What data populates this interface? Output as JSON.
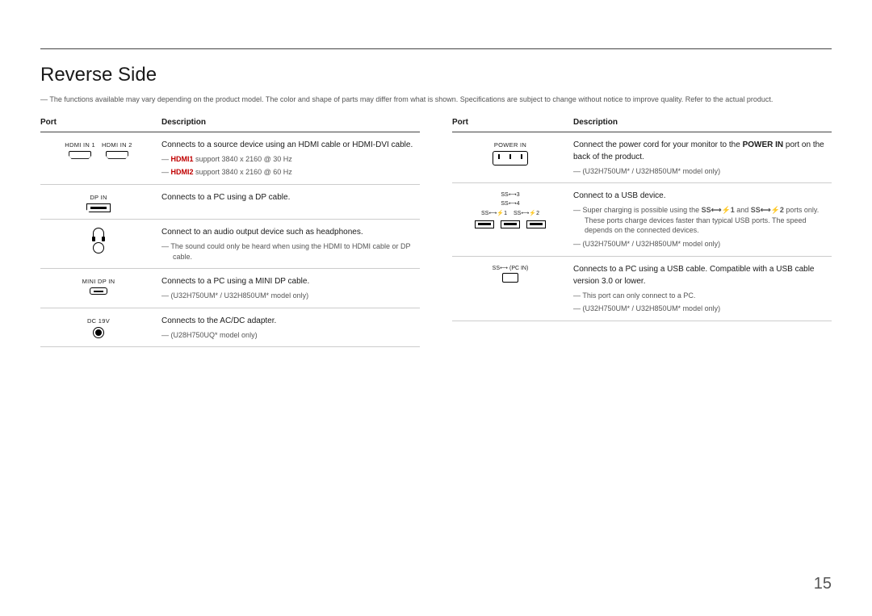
{
  "page": {
    "title": "Reverse Side",
    "intro": "The functions available may vary depending on the product model. The color and shape of parts may differ from what is shown. Specifications are subject to change without notice to improve quality. Refer to the actual product.",
    "page_number": "15"
  },
  "headers": {
    "port": "Port",
    "description": "Description"
  },
  "left_rows": [
    {
      "port_labels": [
        "HDMI IN 1",
        "HDMI IN 2"
      ],
      "icon": "hdmi-pair",
      "desc_main": "Connects to a source device using an HDMI cable or HDMI-DVI cable.",
      "notes": [
        {
          "prefix_red": "HDMI1",
          "rest": " support 3840 x 2160 @ 30 Hz"
        },
        {
          "prefix_red": "HDMI2",
          "rest": " support 3840 x 2160 @ 60 Hz"
        }
      ]
    },
    {
      "port_labels": [
        "DP IN"
      ],
      "icon": "dp",
      "desc_main": "Connects to a PC using a DP cable.",
      "notes": []
    },
    {
      "port_labels": [],
      "icon": "headphone-jack",
      "desc_main": "Connect to an audio output device such as headphones.",
      "notes": [
        {
          "rest": "The sound could only be heard when using the HDMI to HDMI cable or DP cable."
        }
      ]
    },
    {
      "port_labels": [
        "MINI DP IN"
      ],
      "icon": "minidp",
      "desc_main": "Connects to a PC using a MINI DP cable.",
      "notes": [
        {
          "rest": "(U32H750UM* / U32H850UM* model only)"
        }
      ]
    },
    {
      "port_labels": [
        "DC 19V"
      ],
      "icon": "dc",
      "desc_main": "Connects to the AC/DC adapter.",
      "notes": [
        {
          "rest": "(U28H750UQ* model only)"
        }
      ]
    }
  ],
  "right_rows": [
    {
      "port_labels": [
        "POWER IN"
      ],
      "icon": "powerin",
      "desc_main_parts": [
        "Connect the power cord for your monitor to the ",
        "POWER IN",
        " port on the back of the product."
      ],
      "notes": [
        {
          "rest": "(U32H750UM* / U32H850UM* model only)"
        }
      ]
    },
    {
      "port_labels_top": [
        "SS⟷3",
        "SS⟷4"
      ],
      "port_labels_bottom": [
        "SS⟷⚡1",
        "SS⟷⚡2"
      ],
      "icon": "usb-hub",
      "desc_main": "Connect to a USB device.",
      "notes": [
        {
          "rest_parts": [
            "Super charging is possible using the ",
            "SS⟷⚡1",
            " and ",
            "SS⟷⚡2",
            " ports only. These ports charge devices faster than typical USB ports. The speed depends on the connected devices."
          ]
        },
        {
          "rest": "(U32H750UM* / U32H850UM* model only)"
        }
      ]
    },
    {
      "port_labels": [
        "SS⟷ (PC IN)"
      ],
      "icon": "usb-up",
      "desc_main": "Connects to a PC using a USB cable. Compatible with a USB cable version 3.0 or lower.",
      "notes": [
        {
          "rest": "This port can only connect to a PC."
        },
        {
          "rest": "(U32H750UM* / U32H850UM* model only)"
        }
      ]
    }
  ]
}
